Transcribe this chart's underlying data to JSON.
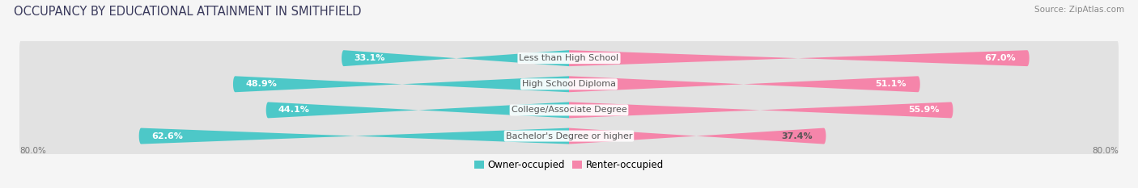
{
  "title": "OCCUPANCY BY EDUCATIONAL ATTAINMENT IN SMITHFIELD",
  "source": "Source: ZipAtlas.com",
  "categories": [
    "Less than High School",
    "High School Diploma",
    "College/Associate Degree",
    "Bachelor's Degree or higher"
  ],
  "owner_values": [
    33.1,
    48.9,
    44.1,
    62.6
  ],
  "renter_values": [
    67.0,
    51.1,
    55.9,
    37.4
  ],
  "owner_color": "#4dc8c8",
  "renter_color": "#f585aa",
  "owner_label": "Owner-occupied",
  "renter_label": "Renter-occupied",
  "x_axis_max": 80.0,
  "x_left_label": "80.0%",
  "x_right_label": "80.0%",
  "fig_background": "#f5f5f5",
  "bar_background": "#e2e2e2",
  "title_color": "#3a3a5c",
  "source_color": "#888888",
  "title_fontsize": 10.5,
  "source_fontsize": 7.5,
  "bar_height": 0.62,
  "label_fontsize": 8.0,
  "value_fontsize": 8.0,
  "category_bg": "white"
}
